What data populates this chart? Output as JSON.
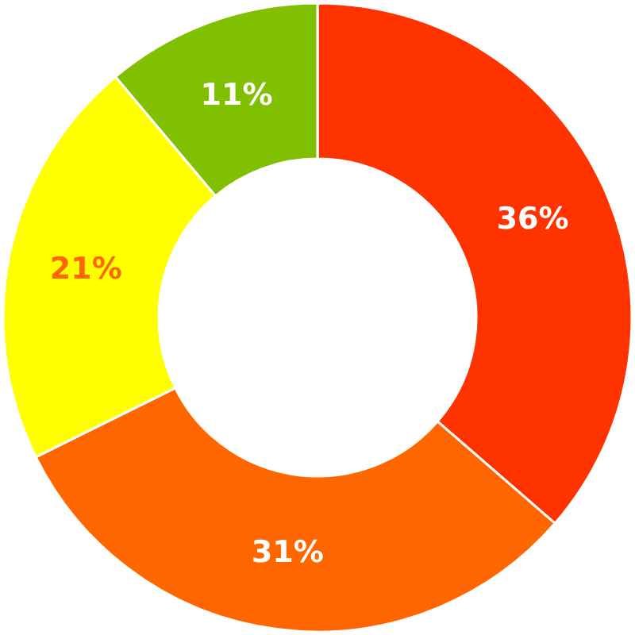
{
  "chart_data": {
    "type": "donut",
    "categories": [
      null,
      null,
      null,
      null
    ],
    "values": [
      36,
      31,
      21,
      11
    ],
    "colors": [
      "#ff3300",
      "#ff6600",
      "#ffff00",
      "#80c000"
    ],
    "value_labels": [
      "36%",
      "31%",
      "21%",
      "11%"
    ]
  }
}
